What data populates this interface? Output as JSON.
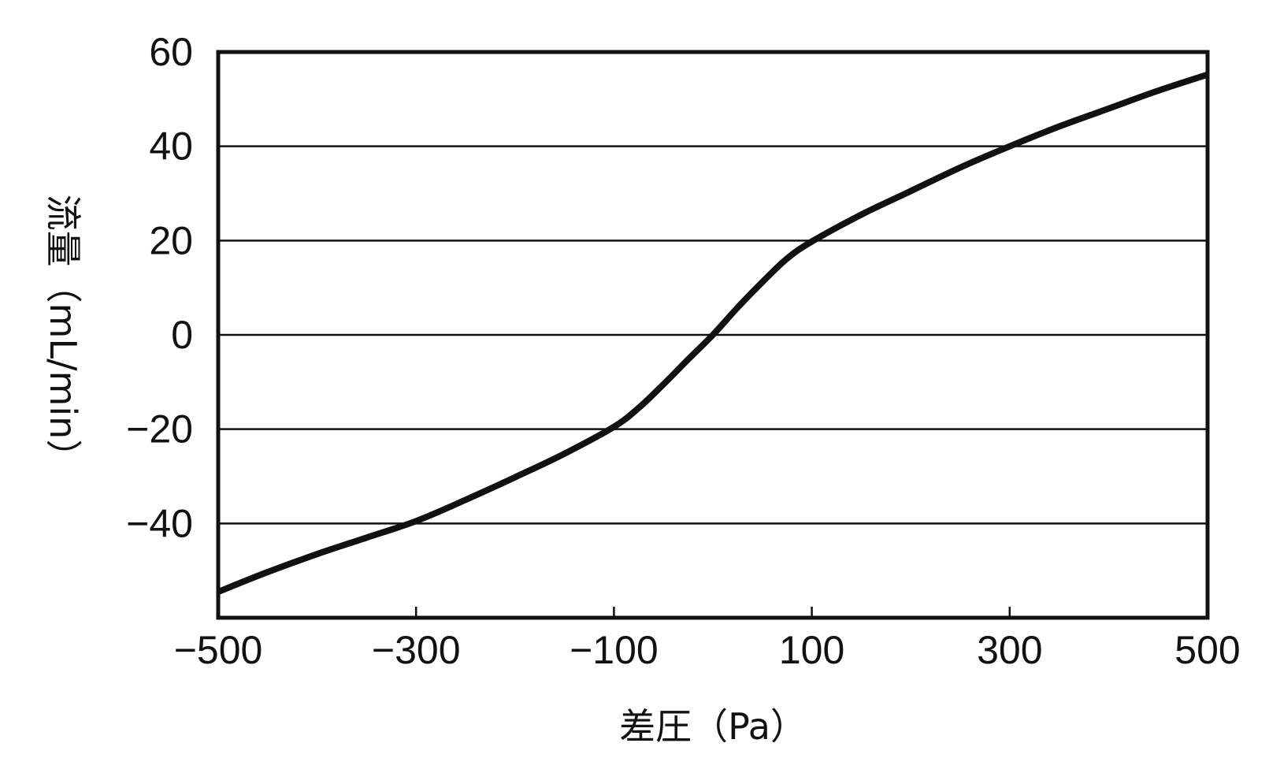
{
  "chart_data": {
    "type": "line",
    "title": "",
    "xlabel": "差圧（Pa）",
    "ylabel": "流量（mL/min）",
    "xlim": [
      -500,
      500
    ],
    "ylim": [
      -60,
      60
    ],
    "x_tick_labels": [
      "−500",
      "−300",
      "−100",
      "100",
      "300",
      "500"
    ],
    "x_ticks": [
      -500,
      -300,
      -100,
      100,
      300,
      500
    ],
    "y_tick_labels": [
      "60",
      "40",
      "20",
      "0",
      "−20",
      "−40"
    ],
    "y_ticks": [
      60,
      40,
      20,
      0,
      -20,
      -40
    ],
    "grid": "horizontal",
    "legend": "none",
    "series": [
      {
        "color": "#111111",
        "x": [
          -500,
          -450,
          -400,
          -350,
          -300,
          -250,
          -200,
          -150,
          -100,
          -75,
          -50,
          -25,
          0,
          25,
          50,
          75,
          100,
          150,
          200,
          250,
          300,
          350,
          400,
          450,
          500
        ],
        "y": [
          -54.5,
          -50.3,
          -46.5,
          -43.0,
          -39.5,
          -35.0,
          -30.2,
          -25.2,
          -19.5,
          -15.5,
          -10.5,
          -5.2,
          0,
          5.8,
          11.2,
          16.2,
          19.8,
          25.5,
          30.5,
          35.5,
          40.0,
          44.2,
          48.0,
          51.8,
          55.2
        ]
      }
    ]
  }
}
